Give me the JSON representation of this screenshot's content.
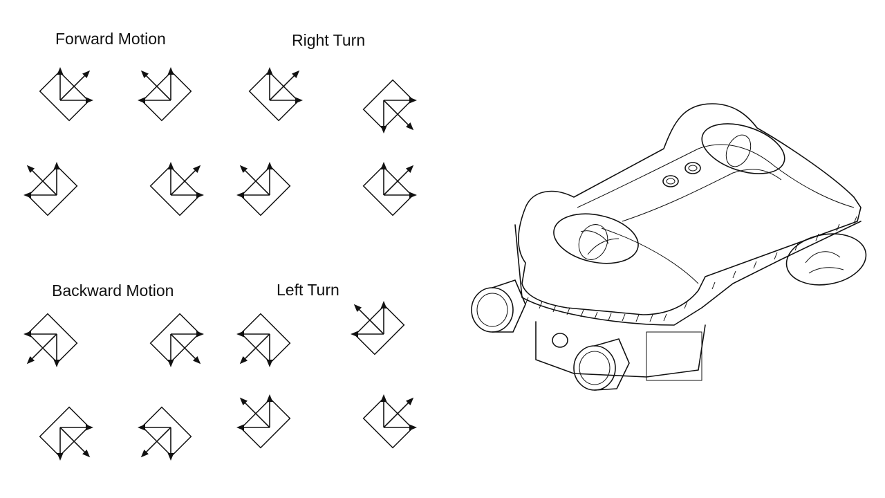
{
  "captions": {
    "forward": "Forward Motion",
    "right": "Right Turn",
    "backward": "Backward Motion",
    "left": "Left Turn"
  },
  "vehicle_label": "",
  "groups": [
    {
      "key": "forward",
      "thrusters": [
        {
          "orientation": "NE",
          "arrows": [
            "up",
            "up-right",
            "right"
          ]
        },
        {
          "orientation": "NW",
          "arrows": [
            "up",
            "up-left",
            "left"
          ]
        },
        {
          "orientation": "NW",
          "arrows": [
            "up",
            "up-left",
            "left"
          ]
        },
        {
          "orientation": "NE",
          "arrows": [
            "up",
            "up-right",
            "right"
          ]
        }
      ]
    },
    {
      "key": "right",
      "thrusters": [
        {
          "orientation": "NE",
          "arrows": [
            "up",
            "up-right",
            "right"
          ]
        },
        {
          "orientation": "SE",
          "arrows": [
            "right",
            "down-right",
            "down"
          ]
        },
        {
          "orientation": "NW",
          "arrows": [
            "up",
            "up-left",
            "left"
          ]
        },
        {
          "orientation": "NE",
          "arrows": [
            "up",
            "up-right",
            "right"
          ]
        }
      ]
    },
    {
      "key": "backward",
      "thrusters": [
        {
          "orientation": "SW",
          "arrows": [
            "left",
            "down-left",
            "down"
          ]
        },
        {
          "orientation": "SE",
          "arrows": [
            "right",
            "down-right",
            "down"
          ]
        },
        {
          "orientation": "SE",
          "arrows": [
            "right",
            "down-right",
            "down"
          ]
        },
        {
          "orientation": "SW",
          "arrows": [
            "left",
            "down-left",
            "down"
          ]
        }
      ]
    },
    {
      "key": "left",
      "thrusters": [
        {
          "orientation": "SW",
          "arrows": [
            "left",
            "down-left",
            "down"
          ]
        },
        {
          "orientation": "NW",
          "arrows": [
            "up",
            "up-left",
            "left"
          ]
        },
        {
          "orientation": "NW",
          "arrows": [
            "up",
            "up-left",
            "left"
          ]
        },
        {
          "orientation": "NE",
          "arrows": [
            "up",
            "up-right",
            "right"
          ]
        }
      ]
    }
  ]
}
